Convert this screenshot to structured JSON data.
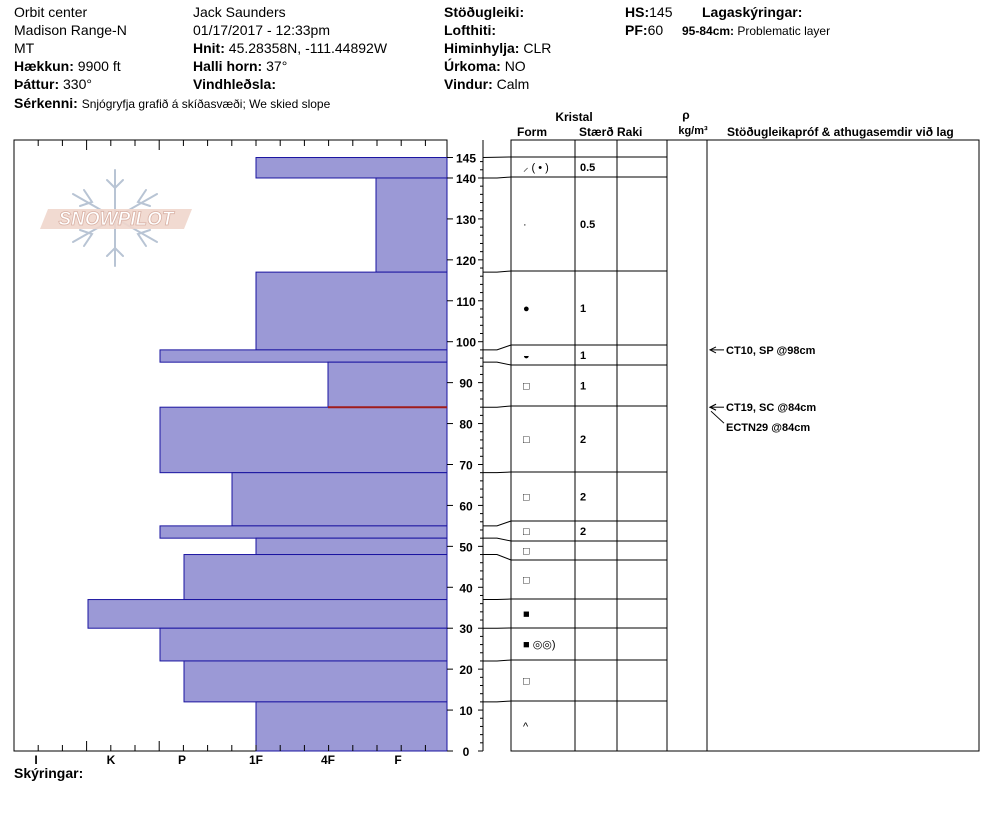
{
  "header": {
    "location": "Orbit center",
    "range": "Madison Range-N",
    "state": "MT",
    "elevation_label": "Hækkun:",
    "elevation_value": "9900 ft",
    "aspect_label": "Þáttur:",
    "aspect_value": "330°",
    "observer": "Jack Saunders",
    "datetime": "01/17/2017 - 12:33pm",
    "coords_label": "Hnit:",
    "coords_value": "45.28358N, -111.44892W",
    "slope_label": "Halli horn:",
    "slope_value": "37°",
    "wind_loading_label": "Vindhleðsla:",
    "stability_label": "Stöðugleiki:",
    "air_temp_label": "Lofthiti:",
    "sky_label": "Himinhylja:",
    "sky_value": "CLR",
    "precip_label": "Úrkoma:",
    "precip_value": "NO",
    "wind_label": "Vindur:",
    "wind_value": "Calm",
    "hs_label": "HS:",
    "hs_value": "145",
    "pf_label": "PF:",
    "pf_value": "60",
    "layers_label": "Lagaskýringar:",
    "layer_note_range": "95-84cm:",
    "layer_note_text": "Problematic layer",
    "remarks_label": "Sérkenni:",
    "remarks_value": "Snjógryfja grafið á skíðasvæði;  We skied slope"
  },
  "logo_text": "SNOWPILOT",
  "columns": {
    "crystal": "Kristal",
    "form": "Form",
    "size": "Stærð",
    "moisture": "Raki",
    "rho": "ρ",
    "density_unit": "kg/m³",
    "tests": "Stöðugleikapróf & athugasemdir við lag"
  },
  "footer": {
    "legend_label": "Skýringar:"
  },
  "colors": {
    "bar_fill": "#9b99d6",
    "bar_stroke": "#1a14a0",
    "problem_line": "#a01c1c"
  },
  "chart_data": {
    "type": "bar",
    "orientation": "horizontal",
    "yunit": "cm",
    "ylim": [
      0,
      145
    ],
    "yticks": [
      "0",
      "10",
      "20",
      "30",
      "40",
      "50",
      "60",
      "70",
      "80",
      "90",
      "100",
      "110",
      "120",
      "130",
      "140",
      "145"
    ],
    "hardness_scale": [
      "I",
      "K",
      "P",
      "1F",
      "4F",
      "F"
    ],
    "layers": [
      {
        "bottom": 140,
        "top": 145,
        "hardness": "1F",
        "form": "decomposing",
        "form_symbol": "⸝ ( • )",
        "size": "0.5"
      },
      {
        "bottom": 117,
        "top": 140,
        "hardness": "4F+",
        "form": "precip",
        "form_symbol": "·",
        "size": "0.5"
      },
      {
        "bottom": 98,
        "top": 117,
        "hardness": "1F",
        "form": "rounds",
        "form_symbol": "●",
        "size": "1"
      },
      {
        "bottom": 95,
        "top": 98,
        "hardness": "P-",
        "form": "mixed",
        "form_symbol": "◒",
        "size": "1"
      },
      {
        "bottom": 84,
        "top": 95,
        "hardness": "4F",
        "form": "faceted",
        "form_symbol": "□",
        "size": "1"
      },
      {
        "bottom": 68,
        "top": 84,
        "hardness": "P-",
        "form": "faceted",
        "form_symbol": "□",
        "size": "2"
      },
      {
        "bottom": 55,
        "top": 68,
        "hardness": "1F+",
        "form": "faceted",
        "form_symbol": "□",
        "size": "2"
      },
      {
        "bottom": 52,
        "top": 55,
        "hardness": "P-",
        "form": "faceted",
        "form_symbol": "□",
        "size": "2"
      },
      {
        "bottom": 48,
        "top": 52,
        "hardness": "1F",
        "form": "faceted",
        "form_symbol": "□",
        "size": ""
      },
      {
        "bottom": 37,
        "top": 48,
        "hardness": "P",
        "form": "faceted",
        "form_symbol": "□",
        "size": ""
      },
      {
        "bottom": 30,
        "top": 37,
        "hardness": "K+",
        "form": "melt-freeze crust",
        "form_symbol": "■",
        "size": ""
      },
      {
        "bottom": 22,
        "top": 30,
        "hardness": "P-",
        "form": "crust/melt",
        "form_symbol": "■ ◎◎)",
        "size": ""
      },
      {
        "bottom": 12,
        "top": 22,
        "hardness": "P",
        "form": "faceted",
        "form_symbol": "□",
        "size": ""
      },
      {
        "bottom": 0,
        "top": 12,
        "hardness": "1F",
        "form": "depth hoar",
        "form_symbol": "^",
        "size": ""
      }
    ],
    "problem_layer_cm": 84,
    "tests": [
      {
        "label": "CT10, SP @98cm",
        "depth": 98
      },
      {
        "label": "CT19, SC @84cm",
        "depth": 84
      },
      {
        "label": "ECTN29 @84cm",
        "depth": 84
      }
    ]
  }
}
